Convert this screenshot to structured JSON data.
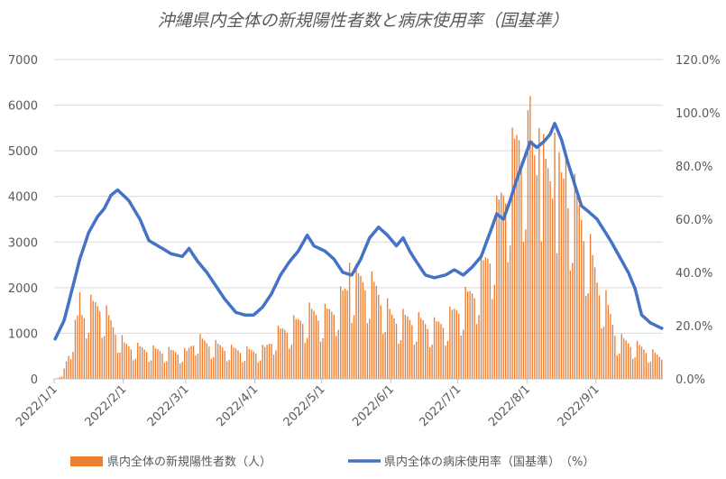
{
  "chart_data": {
    "type": "bar+line",
    "title": "沖縄県内全体の新規陽性者数と病床使用率（国基準）",
    "x_start": "2022/1/1",
    "x_end": "2022/9/30",
    "x_tick_labels": [
      "2022/1/1",
      "2022/2/1",
      "2022/3/1",
      "2022/4/1",
      "2022/5/1",
      "2022/6/1",
      "2022/7/1",
      "2022/8/1",
      "2022/9/1"
    ],
    "y_left_ticks": [
      "0",
      "1000",
      "2000",
      "3000",
      "4000",
      "5000",
      "6000",
      "7000"
    ],
    "y_left_range": [
      0,
      7000
    ],
    "y_right_ticks": [
      "0.0%",
      "20.0%",
      "40.0%",
      "60.0%",
      "80.0%",
      "100.0%",
      "120.0%"
    ],
    "y_right_range": [
      0,
      120
    ],
    "grid": "horizontal",
    "legend_position": "bottom",
    "series": [
      {
        "name": "県内全体の新規陽性者数（人）",
        "kind": "bar",
        "axis": "left",
        "color": "#ED7D31",
        "weekly_pattern": [
          0.55,
          1.0,
          0.92,
          0.9,
          0.85,
          0.78,
          0.5
        ],
        "weekly_anchor_date": "2022/1/2",
        "anchors": [
          [
            "2022/1/1",
            10
          ],
          [
            "2022/1/4",
            50
          ],
          [
            "2022/1/7",
            600
          ],
          [
            "2022/1/11",
            1400
          ],
          [
            "2022/1/16",
            1700
          ],
          [
            "2022/1/21",
            1750
          ],
          [
            "2022/1/28",
            1150
          ],
          [
            "2022/2/1",
            800
          ],
          [
            "2022/2/10",
            700
          ],
          [
            "2022/2/20",
            650
          ],
          [
            "2022/3/1",
            620
          ],
          [
            "2022/3/5",
            950
          ],
          [
            "2022/3/10",
            850
          ],
          [
            "2022/3/20",
            700
          ],
          [
            "2022/3/31",
            650
          ],
          [
            "2022/4/5",
            700
          ],
          [
            "2022/4/10",
            1050
          ],
          [
            "2022/4/20",
            1350
          ],
          [
            "2022/4/25",
            1550
          ],
          [
            "2022/5/1",
            1500
          ],
          [
            "2022/5/5",
            1600
          ],
          [
            "2022/5/10",
            1950
          ],
          [
            "2022/5/15",
            2350
          ],
          [
            "2022/5/20",
            2300
          ],
          [
            "2022/5/25",
            2100
          ],
          [
            "2022/6/1",
            1450
          ],
          [
            "2022/6/10",
            1400
          ],
          [
            "2022/6/20",
            1250
          ],
          [
            "2022/6/25",
            1350
          ],
          [
            "2022/7/1",
            1700
          ],
          [
            "2022/7/8",
            2100
          ],
          [
            "2022/7/15",
            3000
          ],
          [
            "2022/7/20",
            4200
          ],
          [
            "2022/7/25",
            5100
          ],
          [
            "2022/7/28",
            5700
          ],
          [
            "2022/8/1",
            5450
          ],
          [
            "2022/8/5",
            5300
          ],
          [
            "2022/8/10",
            4750
          ],
          [
            "2022/8/15",
            4600
          ],
          [
            "2022/8/20",
            4400
          ],
          [
            "2022/8/25",
            3800
          ],
          [
            "2022/9/1",
            2300
          ],
          [
            "2022/9/5",
            1800
          ],
          [
            "2022/9/10",
            950
          ],
          [
            "2022/9/20",
            750
          ],
          [
            "2022/9/30",
            500
          ]
        ],
        "peaks": [
          [
            "2022/1/12",
            1900
          ],
          [
            "2022/5/13",
            2550
          ],
          [
            "2022/8/2",
            6200
          ],
          [
            "2022/8/6",
            5500
          ],
          [
            "2022/8/13",
            5400
          ],
          [
            "2022/8/18",
            4950
          ]
        ]
      },
      {
        "name": "県内全体の病床使用率（国基準）　（%）",
        "kind": "line",
        "axis": "right",
        "color": "#4472C4",
        "anchors": [
          [
            "2022/1/1",
            15
          ],
          [
            "2022/1/5",
            22
          ],
          [
            "2022/1/9",
            35
          ],
          [
            "2022/1/12",
            45
          ],
          [
            "2022/1/16",
            55
          ],
          [
            "2022/1/20",
            61
          ],
          [
            "2022/1/23",
            64
          ],
          [
            "2022/1/26",
            69
          ],
          [
            "2022/1/29",
            71
          ],
          [
            "2022/2/3",
            67
          ],
          [
            "2022/2/8",
            60
          ],
          [
            "2022/2/12",
            52
          ],
          [
            "2022/2/18",
            49
          ],
          [
            "2022/2/22",
            47
          ],
          [
            "2022/2/27",
            46
          ],
          [
            "2022/3/2",
            49
          ],
          [
            "2022/3/6",
            44
          ],
          [
            "2022/3/10",
            40
          ],
          [
            "2022/3/14",
            35
          ],
          [
            "2022/3/18",
            30
          ],
          [
            "2022/3/23",
            25
          ],
          [
            "2022/3/27",
            24
          ],
          [
            "2022/3/31",
            24
          ],
          [
            "2022/4/4",
            27
          ],
          [
            "2022/4/8",
            32
          ],
          [
            "2022/4/12",
            39
          ],
          [
            "2022/4/16",
            44
          ],
          [
            "2022/4/20",
            48
          ],
          [
            "2022/4/24",
            54
          ],
          [
            "2022/4/27",
            50
          ],
          [
            "2022/5/2",
            48
          ],
          [
            "2022/5/6",
            45
          ],
          [
            "2022/5/10",
            40
          ],
          [
            "2022/5/14",
            39
          ],
          [
            "2022/5/18",
            45
          ],
          [
            "2022/5/22",
            53
          ],
          [
            "2022/5/26",
            57
          ],
          [
            "2022/5/30",
            54
          ],
          [
            "2022/6/3",
            50
          ],
          [
            "2022/6/6",
            53
          ],
          [
            "2022/6/9",
            48
          ],
          [
            "2022/6/12",
            44
          ],
          [
            "2022/6/16",
            39
          ],
          [
            "2022/6/20",
            38
          ],
          [
            "2022/6/25",
            39
          ],
          [
            "2022/6/29",
            41
          ],
          [
            "2022/7/3",
            39
          ],
          [
            "2022/7/7",
            42
          ],
          [
            "2022/7/11",
            46
          ],
          [
            "2022/7/15",
            55
          ],
          [
            "2022/7/18",
            62
          ],
          [
            "2022/7/21",
            60
          ],
          [
            "2022/7/24",
            67
          ],
          [
            "2022/7/27",
            75
          ],
          [
            "2022/7/30",
            82
          ],
          [
            "2022/8/2",
            89
          ],
          [
            "2022/8/5",
            87
          ],
          [
            "2022/8/8",
            89
          ],
          [
            "2022/8/11",
            92
          ],
          [
            "2022/8/13",
            96
          ],
          [
            "2022/8/16",
            90
          ],
          [
            "2022/8/19",
            81
          ],
          [
            "2022/8/22",
            73
          ],
          [
            "2022/8/25",
            65
          ],
          [
            "2022/8/28",
            63
          ],
          [
            "2022/9/1",
            60
          ],
          [
            "2022/9/4",
            56
          ],
          [
            "2022/9/7",
            52
          ],
          [
            "2022/9/11",
            46
          ],
          [
            "2022/9/15",
            40
          ],
          [
            "2022/9/18",
            34
          ],
          [
            "2022/9/21",
            24
          ],
          [
            "2022/9/25",
            21
          ],
          [
            "2022/9/30",
            19
          ]
        ]
      }
    ]
  }
}
